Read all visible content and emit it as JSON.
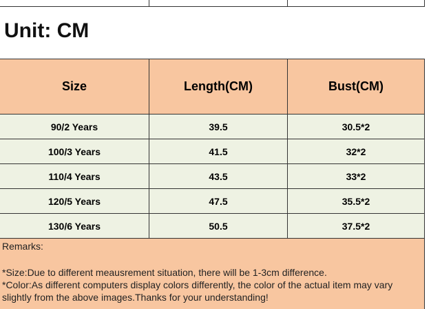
{
  "unit": "Unit: CM",
  "table": {
    "header": [
      "Size",
      "Length(CM)",
      "Bust(CM)"
    ],
    "rows": [
      [
        "90/2 Years",
        "39.5",
        "30.5*2"
      ],
      [
        "100/3 Years",
        "41.5",
        "32*2"
      ],
      [
        "110/4 Years",
        "43.5",
        "33*2"
      ],
      [
        "120/5 Years",
        "47.5",
        "35.5*2"
      ],
      [
        "130/6 Years",
        "50.5",
        "37.5*2"
      ]
    ]
  },
  "remarks": [
    "Remarks:",
    "*Size:Due to different meausrement situation, there will be 1-3cm difference.",
    "*Color:As different computers display colors differently, the color of the actual item may vary",
    "slightly from the above images.Thanks for your understanding!"
  ]
}
